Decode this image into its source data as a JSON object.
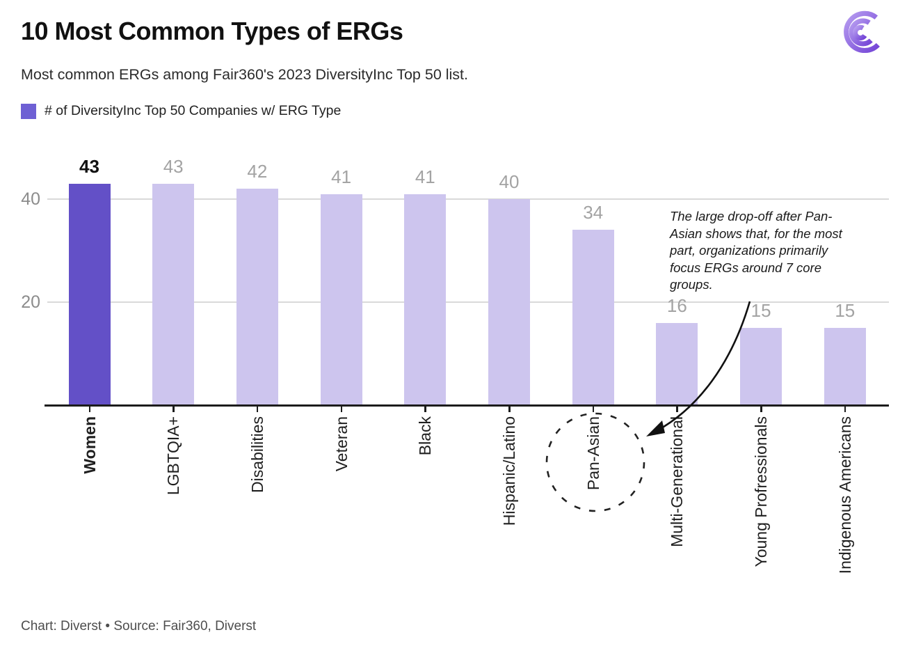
{
  "header": {
    "title": "10 Most Common Types of ERGs",
    "subtitle": "Most common ERGs among Fair360's 2023 DiversityInc Top 50 list.",
    "legend_label": "# of DiversityInc Top 50 Companies w/ ERG Type",
    "logo_icon": "diverst-logo"
  },
  "chart_data": {
    "type": "bar",
    "title": "10 Most Common Types of ERGs",
    "series_name": "# of DiversityInc Top 50 Companies w/ ERG Type",
    "categories": [
      "Women",
      "LGBTQIA+",
      "Disabilities",
      "Veteran",
      "Black",
      "Hispanic/Latino",
      "Pan-Asian",
      "Multi-Generational",
      "Young Profressionals",
      "Indigenous Americans"
    ],
    "values": [
      43,
      43,
      42,
      41,
      41,
      40,
      34,
      16,
      15,
      15
    ],
    "highlighted_category": "Women",
    "xlabel": "",
    "ylabel": "",
    "ylim": [
      0,
      45
    ],
    "yticks": [
      20,
      40
    ],
    "grid": "horizontal",
    "legend_position": "top-left",
    "bar_label_position": "above",
    "annotation": {
      "text": "The large drop-off after Pan-Asian shows that, for the most part, organizations primarily focus ERGs around 7 core groups.",
      "target_category": "Pan-Asian",
      "marker": "dashed-circle-around-x-label"
    }
  },
  "colors": {
    "bar_highlight": "#6350c7",
    "bar_light": "#cdc5ee",
    "legend_swatch": "#6e60d4",
    "gridline": "#d9d9d9",
    "axis": "#1c1c1c",
    "value_label": "#a3a3a3",
    "logo_purple_light": "#b79df0",
    "logo_purple_dark": "#7344d6"
  },
  "footer": {
    "credit": "Chart: Diverst • Source: Fair360, Diverst"
  }
}
